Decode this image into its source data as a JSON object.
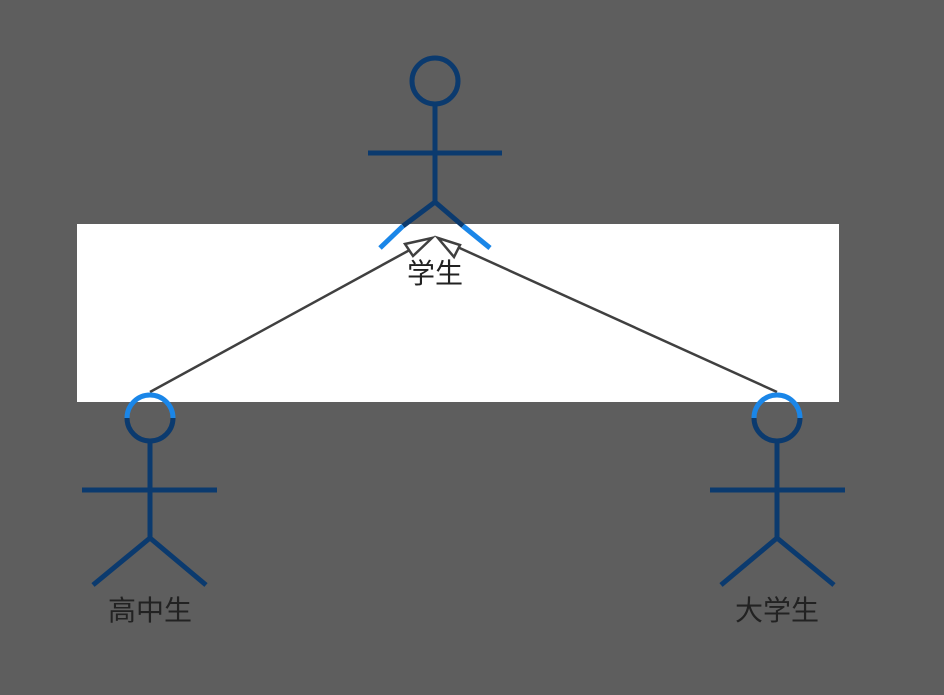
{
  "diagram": {
    "type": "uml-use-case-generalization",
    "colors": {
      "background": "#5e5e5e",
      "panel": "#ffffff",
      "actor_stroke": "#0b3a6e",
      "actor_highlight": "#1a86e8",
      "connector": "#404040",
      "label": "#222222"
    },
    "actors": [
      {
        "id": "student",
        "label": "学生"
      },
      {
        "id": "high-school-student",
        "label": "高中生"
      },
      {
        "id": "university-student",
        "label": "大学生"
      }
    ],
    "generalizations": [
      {
        "from": "high-school-student",
        "to": "student"
      },
      {
        "from": "university-student",
        "to": "student"
      }
    ]
  }
}
